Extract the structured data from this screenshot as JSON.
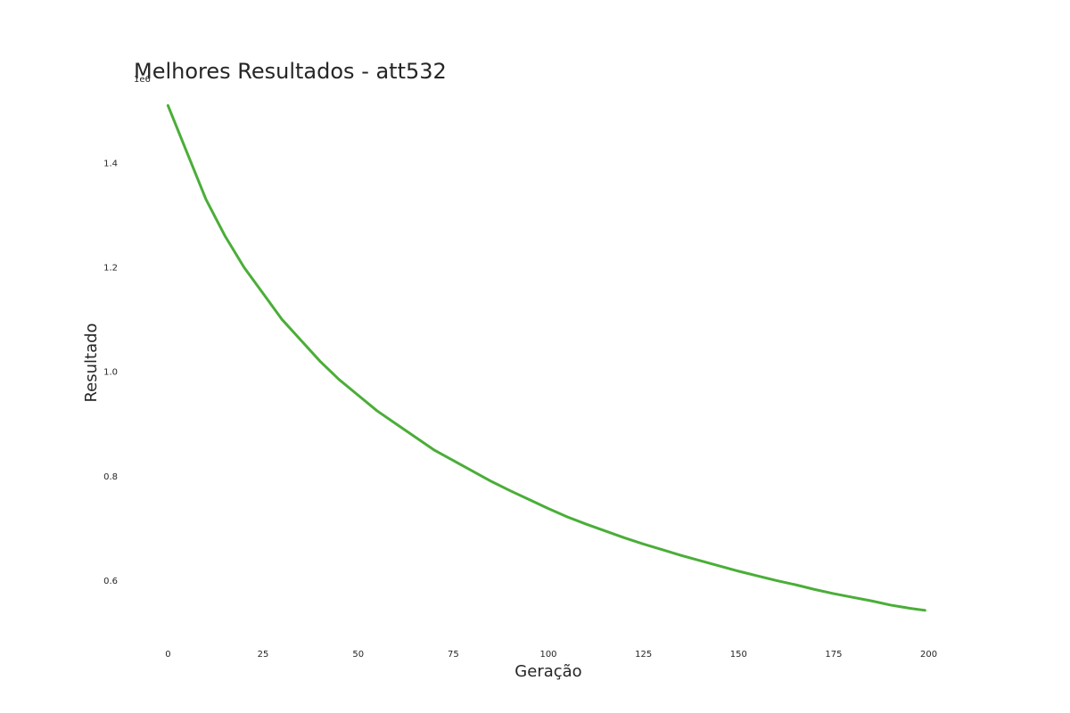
{
  "chart_data": {
    "type": "line",
    "title": "Melhores Resultados - att532",
    "xlabel": "Geração",
    "ylabel": "Resultado",
    "y_offset_label": "1e6",
    "xlim": [
      -9,
      209
    ],
    "ylim": [
      0.5,
      1.55
    ],
    "xticks": [
      0,
      25,
      50,
      75,
      100,
      125,
      150,
      175,
      200
    ],
    "yticks": [
      0.6,
      0.8,
      1.0,
      1.2,
      1.4
    ],
    "xtick_labels": [
      "0",
      "25",
      "50",
      "75",
      "100",
      "125",
      "150",
      "175",
      "200"
    ],
    "ytick_labels": [
      "0.6",
      "0.8",
      "1.0",
      "1.2",
      "1.4"
    ],
    "grid": false,
    "legend": "none",
    "series": [
      {
        "color": "#4aae38",
        "x": [
          0,
          5,
          10,
          15,
          20,
          25,
          30,
          35,
          40,
          45,
          50,
          55,
          60,
          65,
          70,
          75,
          80,
          85,
          90,
          95,
          100,
          105,
          110,
          115,
          120,
          125,
          130,
          135,
          140,
          145,
          150,
          155,
          160,
          165,
          170,
          175,
          180,
          185,
          190,
          195,
          199
        ],
        "values": [
          1.51,
          1.42,
          1.33,
          1.26,
          1.2,
          1.15,
          1.1,
          1.06,
          1.02,
          0.985,
          0.955,
          0.925,
          0.9,
          0.875,
          0.85,
          0.83,
          0.81,
          0.79,
          0.772,
          0.755,
          0.738,
          0.722,
          0.708,
          0.695,
          0.682,
          0.67,
          0.659,
          0.648,
          0.638,
          0.628,
          0.618,
          0.609,
          0.6,
          0.592,
          0.583,
          0.575,
          0.568,
          0.561,
          0.553,
          0.547,
          0.543
        ]
      }
    ]
  }
}
